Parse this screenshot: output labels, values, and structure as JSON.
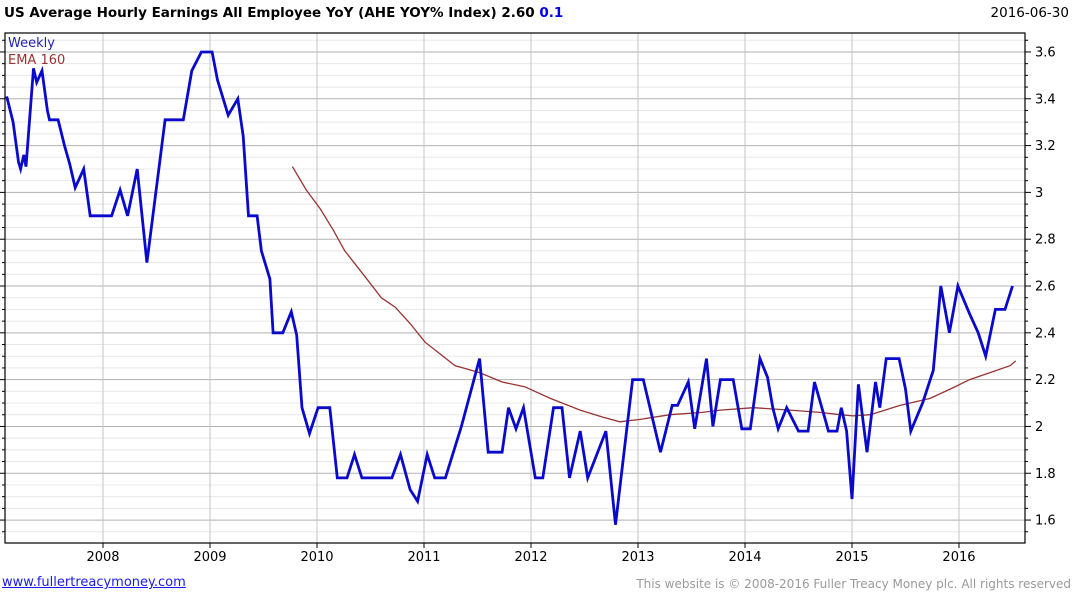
{
  "header": {
    "title": "US Average Hourly Earnings All Employee YoY (AHE YOY% Index)",
    "last_value": "2.60",
    "change": "0.1",
    "date": "2016-06-30"
  },
  "legend": {
    "weekly": "Weekly",
    "ema": "EMA 160"
  },
  "footer": {
    "site": "www.fullertreacymoney.com",
    "copyright": "This website is © 2008-2016 Fuller Treacy Money plc. All rights reserved"
  },
  "colors": {
    "weekly_line": "#0a0acc",
    "ema_line": "#993333",
    "grid_major": "#b2b2b2",
    "grid_minor": "#e8e8e8",
    "grid_vertical": "#c4c4c4",
    "axis": "#000000",
    "change_text": "#0000ee",
    "link": "#1a1aee",
    "copyright_text": "#9a9a9a"
  },
  "chart_data": {
    "type": "line",
    "title": "US Average Hourly Earnings All Employee YoY (AHE YOY% Index) 2.60 0.1",
    "xlabel": "",
    "ylabel": "",
    "xlim": [
      2007.084,
      2016.617
    ],
    "ylim": [
      1.502,
      3.681
    ],
    "grid": true,
    "legend_position": "top-left",
    "y_minor_step": 0.05,
    "x_ticks": [
      [
        2008,
        "2008"
      ],
      [
        2009,
        "2009"
      ],
      [
        2010,
        "2010"
      ],
      [
        2011,
        "2011"
      ],
      [
        2012,
        "2012"
      ],
      [
        2013,
        "2013"
      ],
      [
        2014,
        "2014"
      ],
      [
        2015,
        "2015"
      ],
      [
        2016,
        "2016"
      ]
    ],
    "y_ticks": [
      [
        1.6,
        "1.6"
      ],
      [
        1.8,
        "1.8"
      ],
      [
        2.0,
        "2"
      ],
      [
        2.2,
        "2.2"
      ],
      [
        2.4,
        "2.4"
      ],
      [
        2.6,
        "2.6"
      ],
      [
        2.8,
        "2.8"
      ],
      [
        3.0,
        "3"
      ],
      [
        3.2,
        "3.2"
      ],
      [
        3.4,
        "3.4"
      ],
      [
        3.6,
        "3.6"
      ]
    ],
    "series": [
      {
        "name": "Weekly",
        "color": "#0a0acc",
        "width": 2.8,
        "points": [
          [
            2007.1,
            3.41
          ],
          [
            2007.16,
            3.3
          ],
          [
            2007.21,
            3.13
          ],
          [
            2007.23,
            3.1
          ],
          [
            2007.26,
            3.16
          ],
          [
            2007.28,
            3.11
          ],
          [
            2007.35,
            3.53
          ],
          [
            2007.38,
            3.47
          ],
          [
            2007.43,
            3.52
          ],
          [
            2007.48,
            3.35
          ],
          [
            2007.5,
            3.31
          ],
          [
            2007.58,
            3.31
          ],
          [
            2007.64,
            3.2
          ],
          [
            2007.69,
            3.12
          ],
          [
            2007.74,
            3.02
          ],
          [
            2007.82,
            3.1
          ],
          [
            2007.88,
            2.9
          ],
          [
            2008.08,
            2.9
          ],
          [
            2008.16,
            3.01
          ],
          [
            2008.23,
            2.9
          ],
          [
            2008.32,
            3.1
          ],
          [
            2008.41,
            2.7
          ],
          [
            2008.58,
            3.31
          ],
          [
            2008.75,
            3.31
          ],
          [
            2008.83,
            3.52
          ],
          [
            2008.92,
            3.6
          ],
          [
            2009.02,
            3.6
          ],
          [
            2009.07,
            3.48
          ],
          [
            2009.17,
            3.33
          ],
          [
            2009.26,
            3.4
          ],
          [
            2009.31,
            3.24
          ],
          [
            2009.36,
            2.9
          ],
          [
            2009.44,
            2.9
          ],
          [
            2009.48,
            2.75
          ],
          [
            2009.56,
            2.63
          ],
          [
            2009.59,
            2.4
          ],
          [
            2009.68,
            2.4
          ],
          [
            2009.76,
            2.49
          ],
          [
            2009.81,
            2.39
          ],
          [
            2009.86,
            2.08
          ],
          [
            2009.93,
            1.97
          ],
          [
            2010.01,
            2.08
          ],
          [
            2010.12,
            2.08
          ],
          [
            2010.19,
            1.78
          ],
          [
            2010.28,
            1.78
          ],
          [
            2010.35,
            1.88
          ],
          [
            2010.42,
            1.78
          ],
          [
            2010.7,
            1.78
          ],
          [
            2010.78,
            1.88
          ],
          [
            2010.87,
            1.73
          ],
          [
            2010.94,
            1.68
          ],
          [
            2011.03,
            1.88
          ],
          [
            2011.1,
            1.78
          ],
          [
            2011.2,
            1.78
          ],
          [
            2011.35,
            2.0
          ],
          [
            2011.52,
            2.29
          ],
          [
            2011.6,
            1.89
          ],
          [
            2011.73,
            1.89
          ],
          [
            2011.79,
            2.08
          ],
          [
            2011.86,
            1.99
          ],
          [
            2011.93,
            2.08
          ],
          [
            2012.04,
            1.78
          ],
          [
            2012.11,
            1.78
          ],
          [
            2012.21,
            2.08
          ],
          [
            2012.29,
            2.08
          ],
          [
            2012.36,
            1.78
          ],
          [
            2012.46,
            1.98
          ],
          [
            2012.53,
            1.78
          ],
          [
            2012.7,
            1.98
          ],
          [
            2012.79,
            1.58
          ],
          [
            2012.95,
            2.2
          ],
          [
            2013.05,
            2.2
          ],
          [
            2013.21,
            1.89
          ],
          [
            2013.32,
            2.09
          ],
          [
            2013.37,
            2.09
          ],
          [
            2013.47,
            2.19
          ],
          [
            2013.53,
            1.99
          ],
          [
            2013.64,
            2.29
          ],
          [
            2013.7,
            2.0
          ],
          [
            2013.77,
            2.2
          ],
          [
            2013.89,
            2.2
          ],
          [
            2013.97,
            1.99
          ],
          [
            2014.05,
            1.99
          ],
          [
            2014.14,
            2.29
          ],
          [
            2014.21,
            2.21
          ],
          [
            2014.26,
            2.08
          ],
          [
            2014.31,
            1.99
          ],
          [
            2014.39,
            2.08
          ],
          [
            2014.5,
            1.98
          ],
          [
            2014.59,
            1.98
          ],
          [
            2014.65,
            2.19
          ],
          [
            2014.75,
            2.03
          ],
          [
            2014.78,
            1.98
          ],
          [
            2014.86,
            1.98
          ],
          [
            2014.9,
            2.08
          ],
          [
            2014.95,
            1.98
          ],
          [
            2015.0,
            1.69
          ],
          [
            2015.06,
            2.18
          ],
          [
            2015.14,
            1.89
          ],
          [
            2015.22,
            2.19
          ],
          [
            2015.26,
            2.08
          ],
          [
            2015.32,
            2.29
          ],
          [
            2015.44,
            2.29
          ],
          [
            2015.5,
            2.16
          ],
          [
            2015.55,
            1.98
          ],
          [
            2015.66,
            2.1
          ],
          [
            2015.76,
            2.24
          ],
          [
            2015.83,
            2.6
          ],
          [
            2015.91,
            2.4
          ],
          [
            2015.99,
            2.6
          ],
          [
            2016.1,
            2.48
          ],
          [
            2016.18,
            2.4
          ],
          [
            2016.25,
            2.3
          ],
          [
            2016.34,
            2.5
          ],
          [
            2016.43,
            2.5
          ],
          [
            2016.5,
            2.6
          ]
        ]
      },
      {
        "name": "EMA 160",
        "color": "#993333",
        "width": 1.3,
        "points": [
          [
            2009.77,
            3.11
          ],
          [
            2009.9,
            3.01
          ],
          [
            2010.03,
            2.93
          ],
          [
            2010.15,
            2.84
          ],
          [
            2010.26,
            2.75
          ],
          [
            2010.38,
            2.68
          ],
          [
            2010.5,
            2.61
          ],
          [
            2010.6,
            2.55
          ],
          [
            2010.73,
            2.51
          ],
          [
            2010.87,
            2.44
          ],
          [
            2011.01,
            2.36
          ],
          [
            2011.15,
            2.31
          ],
          [
            2011.29,
            2.26
          ],
          [
            2011.52,
            2.23
          ],
          [
            2011.73,
            2.19
          ],
          [
            2011.94,
            2.17
          ],
          [
            2012.18,
            2.12
          ],
          [
            2012.46,
            2.07
          ],
          [
            2012.67,
            2.04
          ],
          [
            2012.83,
            2.02
          ],
          [
            2013.02,
            2.03
          ],
          [
            2013.3,
            2.05
          ],
          [
            2013.6,
            2.06
          ],
          [
            2013.77,
            2.07
          ],
          [
            2014.08,
            2.08
          ],
          [
            2014.42,
            2.07
          ],
          [
            2014.7,
            2.06
          ],
          [
            2014.89,
            2.05
          ],
          [
            2015.01,
            2.045
          ],
          [
            2015.17,
            2.05
          ],
          [
            2015.45,
            2.09
          ],
          [
            2015.73,
            2.12
          ],
          [
            2015.92,
            2.16
          ],
          [
            2016.1,
            2.2
          ],
          [
            2016.29,
            2.23
          ],
          [
            2016.48,
            2.26
          ],
          [
            2016.53,
            2.28
          ]
        ]
      }
    ]
  }
}
